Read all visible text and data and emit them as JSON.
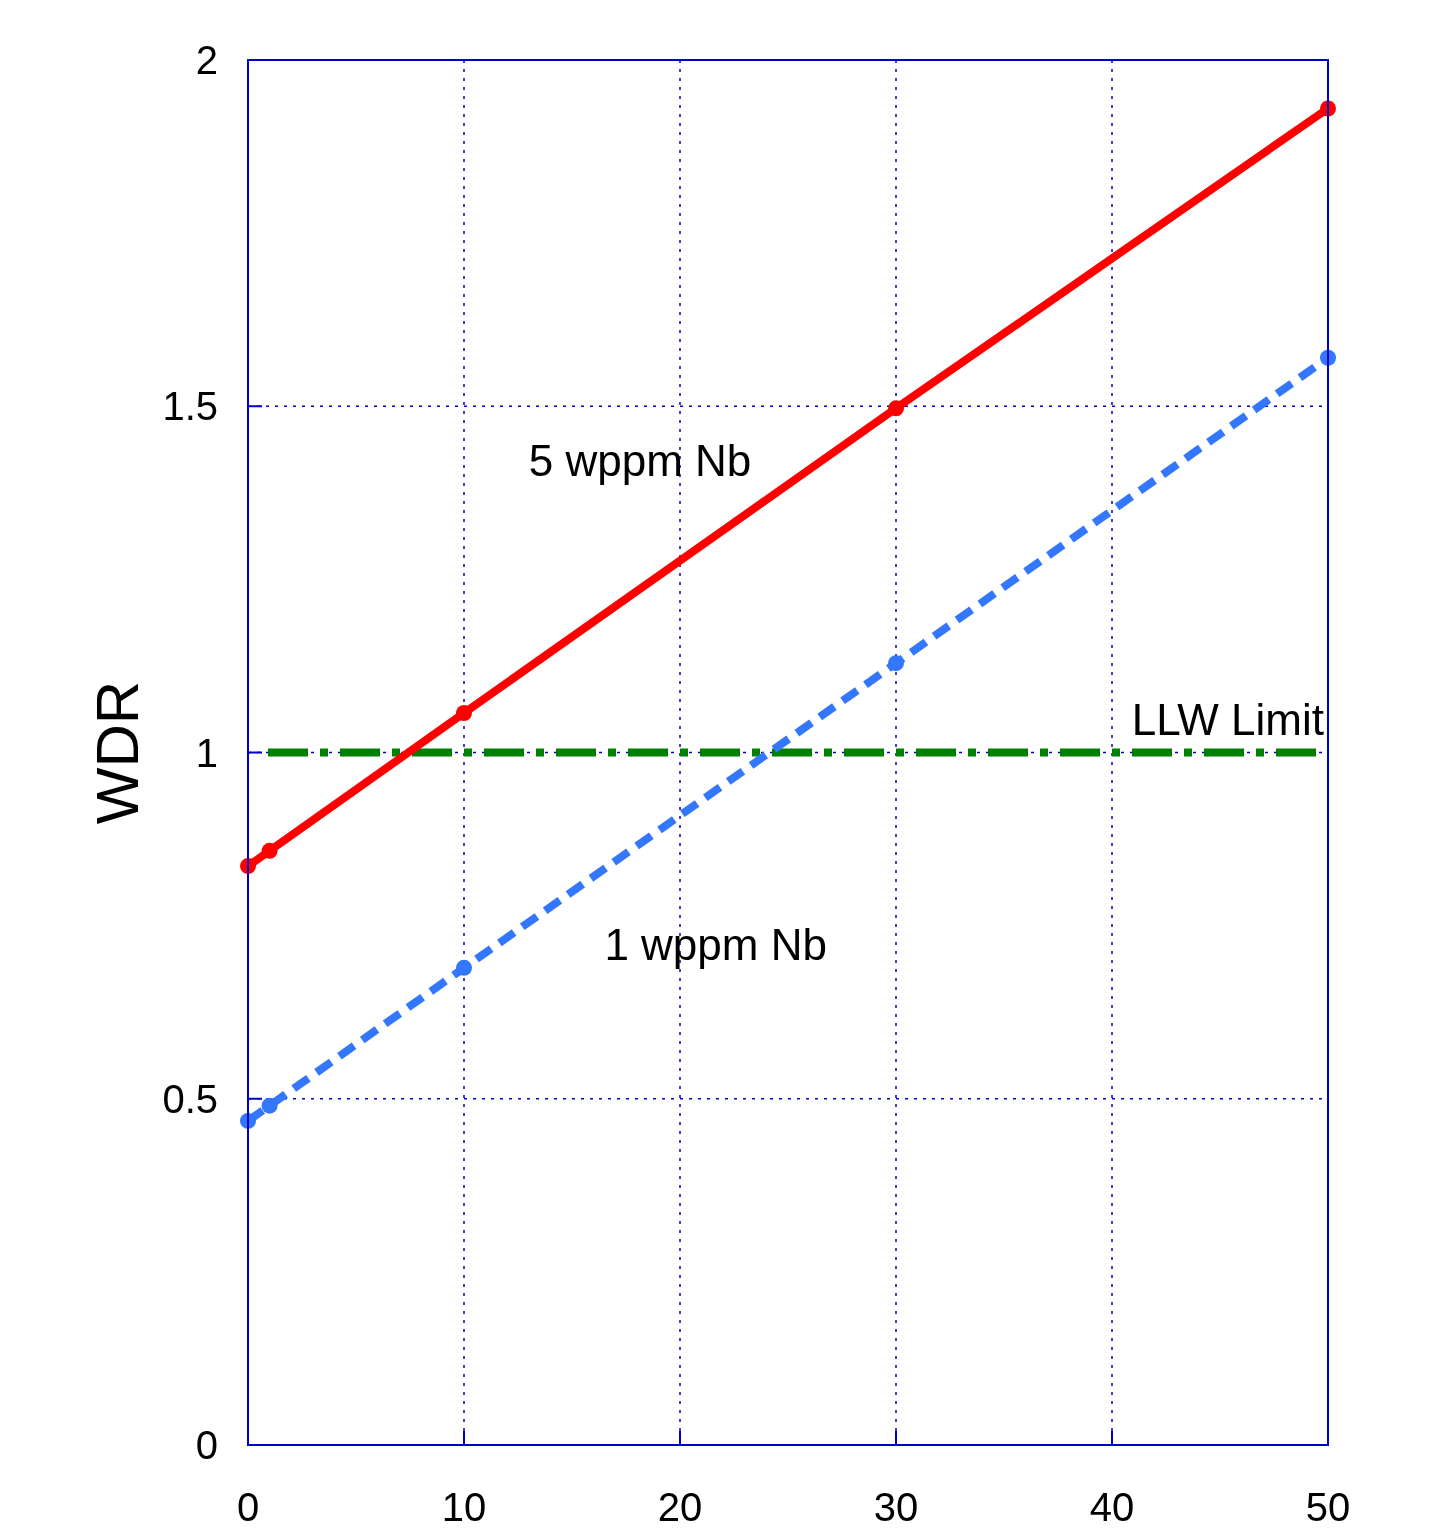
{
  "chart_data": {
    "type": "line",
    "ylabel": "WDR",
    "x": [
      0,
      1,
      10,
      30,
      50
    ],
    "series": [
      {
        "color": "#ff0000",
        "values": [
          0.836,
          0.858,
          1.057,
          1.497,
          1.93
        ],
        "line_style": "solid"
      },
      {
        "color": "#3377ff",
        "values": [
          0.468,
          0.49,
          0.689,
          1.129,
          1.57
        ],
        "line_style": "dashed"
      }
    ],
    "xlim": [
      0,
      50
    ],
    "xticks": [
      0,
      10,
      20,
      30,
      40,
      50
    ],
    "ylim": [
      0,
      2
    ],
    "yticks": [
      0,
      0.5,
      1,
      1.5,
      2
    ],
    "grid": true,
    "marker": "circle",
    "ref_lines": [
      {
        "axis": "y",
        "value": 1,
        "label": "LLW Limit",
        "color": "#008000",
        "line_style": "dashed"
      }
    ],
    "annotations": [
      "5 wppm Nb",
      "1 wppm Nb"
    ]
  }
}
